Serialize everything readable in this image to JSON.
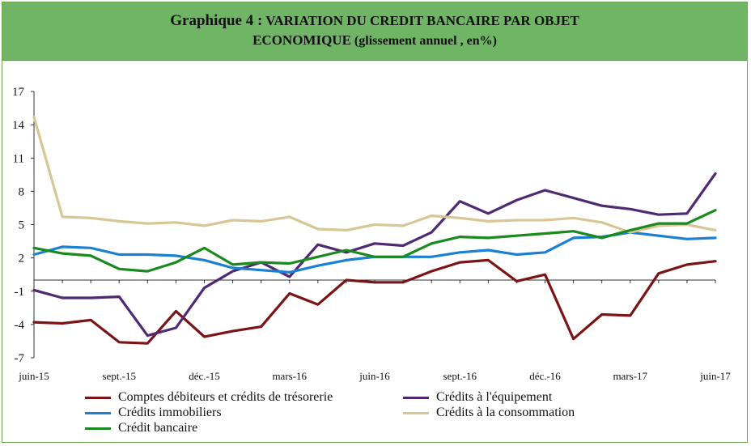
{
  "title": {
    "lead": "Graphique 4 :",
    "line1": " VARIATION DU CREDIT BANCAIRE PAR OBJET",
    "line2_main": "ECONOMIQUE",
    "line2_sub": " (glissement annuel , en%)"
  },
  "chart_data": {
    "type": "line",
    "title": "Graphique 4 : VARIATION DU CREDIT BANCAIRE PAR OBJET ECONOMIQUE (glissement annuel , en%)",
    "xlabel": "",
    "ylabel": "",
    "ylim": [
      -7,
      17
    ],
    "yticks": [
      17,
      14,
      11,
      8,
      5,
      2,
      -1,
      -4,
      -7
    ],
    "x_tick_labels": [
      "juin-15",
      "sept.-15",
      "déc.-15",
      "mars-16",
      "juin-16",
      "sept.-16",
      "déc.-16",
      "mars-17",
      "juin-17"
    ],
    "x_tick_positions": [
      0,
      3,
      6,
      9,
      12,
      15,
      18,
      21,
      24
    ],
    "periods": [
      "juin-15",
      "juil.-15",
      "août-15",
      "sept.-15",
      "oct.-15",
      "nov.-15",
      "déc.-15",
      "janv.-16",
      "févr.-16",
      "mars-16",
      "avr.-16",
      "mai-16",
      "juin-16",
      "juil.-16",
      "août-16",
      "sept.-16",
      "oct.-16",
      "nov.-16",
      "déc.-16",
      "janv.-17",
      "févr.-17",
      "mars-17",
      "avr.-17",
      "mai-17",
      "juin-17"
    ],
    "grid": false,
    "legend_position": "bottom",
    "series": [
      {
        "name": "Comptes débiteurs et crédits de trésorerie",
        "color": "#7b1416",
        "values": [
          -3.8,
          -3.9,
          -3.6,
          -5.6,
          -5.7,
          -2.8,
          -5.1,
          -4.6,
          -4.2,
          -1.2,
          -2.2,
          0.0,
          -0.2,
          -0.2,
          0.8,
          1.6,
          1.8,
          -0.1,
          0.5,
          -5.3,
          -3.1,
          -3.2,
          0.6,
          1.4,
          1.7
        ]
      },
      {
        "name": "Crédits à l'équipement",
        "color": "#4f2a72",
        "values": [
          -0.9,
          -1.6,
          -1.6,
          -1.5,
          -5.0,
          -4.3,
          -0.7,
          0.8,
          1.6,
          0.3,
          3.2,
          2.5,
          3.3,
          3.1,
          4.3,
          7.1,
          6.0,
          7.2,
          8.1,
          7.4,
          6.7,
          6.4,
          5.9,
          6.0,
          9.6
        ]
      },
      {
        "name": "Crédits immobiliers",
        "color": "#1b7fd2",
        "values": [
          2.3,
          3.0,
          2.9,
          2.3,
          2.3,
          2.2,
          1.8,
          1.1,
          0.9,
          0.7,
          1.3,
          1.8,
          2.1,
          2.1,
          2.1,
          2.5,
          2.7,
          2.3,
          2.5,
          3.8,
          3.9,
          4.3,
          4.0,
          3.7,
          3.8
        ]
      },
      {
        "name": "Crédits à la consommation",
        "color": "#d8c796",
        "values": [
          14.7,
          5.7,
          5.6,
          5.3,
          5.1,
          5.2,
          4.9,
          5.4,
          5.3,
          5.7,
          4.6,
          4.5,
          5.0,
          4.9,
          5.8,
          5.6,
          5.3,
          5.4,
          5.4,
          5.6,
          5.2,
          4.3,
          4.9,
          5.0,
          4.5
        ]
      },
      {
        "name": "Crédit bancaire",
        "color": "#1a8a1f",
        "values": [
          2.9,
          2.4,
          2.2,
          1.0,
          0.8,
          1.6,
          2.9,
          1.4,
          1.6,
          1.5,
          2.1,
          2.7,
          2.1,
          2.1,
          3.3,
          3.9,
          3.8,
          4.0,
          4.2,
          4.4,
          3.8,
          4.5,
          5.1,
          5.1,
          6.3
        ]
      }
    ]
  }
}
